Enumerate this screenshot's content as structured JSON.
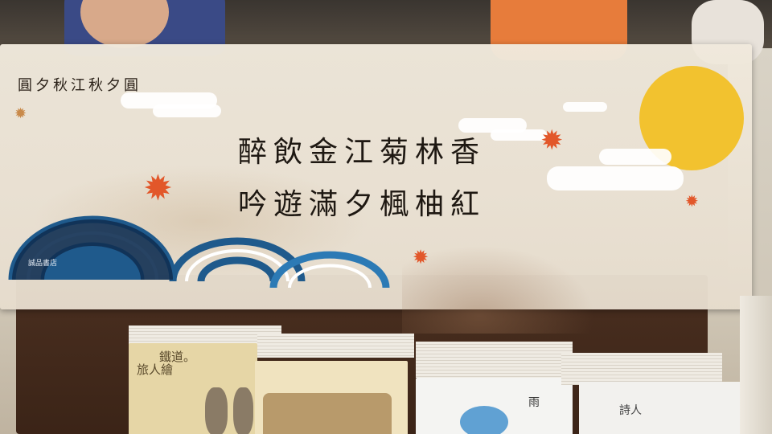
{
  "sign": {
    "header_line": "圓夕秋江秋夕圓",
    "poem_line_1": "醉飲金江菊林香",
    "poem_line_2": "吟遊滿夕楓柚紅",
    "store_logo": "誠品書店"
  },
  "books": {
    "book1_title": "鐵道。",
    "book1_subtitle": "旅人繪",
    "book3_title": "雨",
    "book4_title": "詩人"
  },
  "colors": {
    "moon": "#f2c22f",
    "maple": "#e2572a",
    "wave": "#1f5a8c",
    "counter": "#3b2417"
  }
}
